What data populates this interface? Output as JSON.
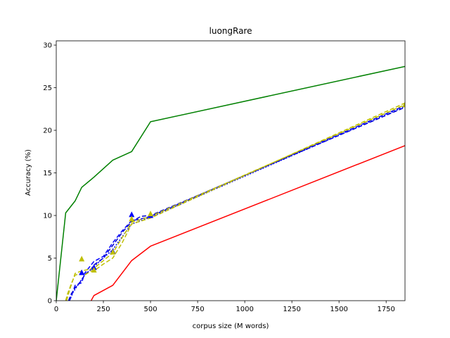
{
  "chart_data": {
    "type": "line",
    "title": "luongRare",
    "xlabel": "corpus size (M words)",
    "ylabel": "Accuracy (%)",
    "xlim": [
      0,
      1850
    ],
    "ylim": [
      0,
      30.5
    ],
    "xticks": [
      0,
      250,
      500,
      750,
      1000,
      1250,
      1500,
      1750
    ],
    "yticks": [
      0,
      5,
      10,
      15,
      20,
      25,
      30
    ],
    "grid": false,
    "legend": "none",
    "series": [
      {
        "color": "#008000",
        "style": "solid",
        "marker": "none",
        "x": [
          0,
          50,
          100,
          135,
          200,
          300,
          400,
          500,
          1850
        ],
        "y": [
          0,
          10.3,
          11.7,
          13.3,
          14.5,
          16.5,
          17.5,
          21.0,
          27.5
        ]
      },
      {
        "color": "#ff0000",
        "style": "solid",
        "marker": "none",
        "x": [
          185,
          200,
          300,
          400,
          500,
          1850
        ],
        "y": [
          0,
          0.6,
          1.8,
          4.7,
          6.4,
          18.2
        ]
      },
      {
        "color": "#0000ff",
        "style": "dashed",
        "marker": "none",
        "x": [
          70,
          80,
          100,
          135,
          150,
          185,
          200,
          250,
          300,
          350,
          400,
          450,
          500,
          1850
        ],
        "y": [
          0,
          0.5,
          1.8,
          2.1,
          3.2,
          4.2,
          4.6,
          5.2,
          6.8,
          8.2,
          9.4,
          9.6,
          9.9,
          22.9
        ]
      },
      {
        "color": "#0000cc",
        "style": "dashed",
        "marker": "none",
        "x": [
          65,
          80,
          100,
          135,
          150,
          185,
          200,
          250,
          300,
          350,
          400,
          450,
          500,
          1850
        ],
        "y": [
          0,
          0.8,
          1.5,
          2.4,
          3.0,
          3.7,
          4.2,
          5.0,
          6.5,
          8.0,
          9.3,
          9.9,
          10.0,
          22.7
        ]
      },
      {
        "color": "#0000ff",
        "style": "dotted",
        "marker": "none",
        "x": [
          70,
          90,
          120,
          150,
          200,
          300,
          400,
          500,
          1850
        ],
        "y": [
          0,
          1.0,
          2.0,
          3.0,
          4.0,
          6.0,
          9.0,
          9.8,
          22.8
        ]
      },
      {
        "color": "#bfbf00",
        "style": "dashed",
        "marker": "none",
        "x": [
          50,
          60,
          80,
          100,
          135,
          150,
          185,
          200,
          250,
          300,
          350,
          400,
          500,
          1850
        ],
        "y": [
          0,
          0.8,
          2.0,
          3.0,
          3.2,
          3.0,
          3.5,
          3.5,
          4.3,
          5.0,
          6.8,
          9.0,
          9.7,
          23.2
        ]
      },
      {
        "color": "#bfbf00",
        "style": "dashed",
        "marker": "none",
        "x": [
          55,
          70,
          100,
          135,
          200,
          300,
          400,
          500,
          1850
        ],
        "y": [
          0,
          1.2,
          3.2,
          3.5,
          3.8,
          5.6,
          9.2,
          9.9,
          23.0
        ]
      },
      {
        "color": "#0000ff",
        "style": "none",
        "marker": "triangle",
        "x": [
          135,
          200,
          300,
          400,
          500
        ],
        "y": [
          3.3,
          3.9,
          5.8,
          10.1,
          10.0
        ]
      },
      {
        "color": "#bfbf00",
        "style": "none",
        "marker": "triangle",
        "x": [
          135,
          200,
          300,
          400,
          500,
          1850
        ],
        "y": [
          4.9,
          3.6,
          5.7,
          9.6,
          10.2,
          23.0
        ]
      }
    ]
  }
}
